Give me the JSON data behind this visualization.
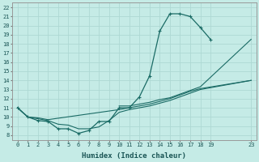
{
  "xlabel": "Humidex (Indice chaleur)",
  "bg_color": "#c5ebe6",
  "grid_color": "#aed8d3",
  "line_color": "#1a6b65",
  "xlim": [
    -0.5,
    23.5
  ],
  "ylim": [
    7.5,
    22.5
  ],
  "xticks": [
    0,
    1,
    2,
    3,
    4,
    5,
    6,
    7,
    8,
    9,
    10,
    11,
    12,
    13,
    14,
    15,
    16,
    17,
    18,
    19,
    23
  ],
  "yticks": [
    8,
    9,
    10,
    11,
    12,
    13,
    14,
    15,
    16,
    17,
    18,
    19,
    20,
    21,
    22
  ],
  "line1_x": [
    0,
    1,
    2,
    3,
    4,
    5,
    6,
    7,
    8,
    9,
    10,
    11,
    12,
    13,
    14,
    15,
    16,
    17,
    18,
    19
  ],
  "line1_y": [
    11.0,
    10.0,
    9.6,
    9.5,
    8.7,
    8.7,
    8.2,
    8.5,
    9.5,
    9.5,
    11.0,
    11.0,
    12.2,
    14.5,
    19.4,
    21.3,
    21.3,
    21.0,
    19.8,
    18.5
  ],
  "line2_x": [
    0,
    1,
    2,
    3,
    4,
    5,
    6,
    7,
    8,
    9,
    10,
    11,
    12,
    13,
    14,
    15,
    16,
    17,
    18,
    23
  ],
  "line2_y": [
    11.0,
    10.0,
    9.8,
    9.6,
    9.2,
    9.1,
    8.7,
    8.7,
    8.9,
    9.6,
    10.5,
    10.8,
    11.0,
    11.2,
    11.5,
    11.8,
    12.2,
    12.6,
    13.0,
    14.0
  ],
  "line3_x": [
    0,
    1,
    2,
    3,
    10,
    11,
    12,
    13,
    14,
    15,
    16,
    17,
    18,
    23
  ],
  "line3_y": [
    11.0,
    10.0,
    9.9,
    9.7,
    10.8,
    11.0,
    11.2,
    11.4,
    11.7,
    12.0,
    12.4,
    12.8,
    13.1,
    14.0
  ],
  "line4_x": [
    10,
    11,
    12,
    13,
    14,
    15,
    16,
    17,
    18,
    23
  ],
  "line4_y": [
    11.2,
    11.2,
    11.4,
    11.6,
    11.9,
    12.1,
    12.5,
    12.9,
    13.3,
    18.5
  ]
}
